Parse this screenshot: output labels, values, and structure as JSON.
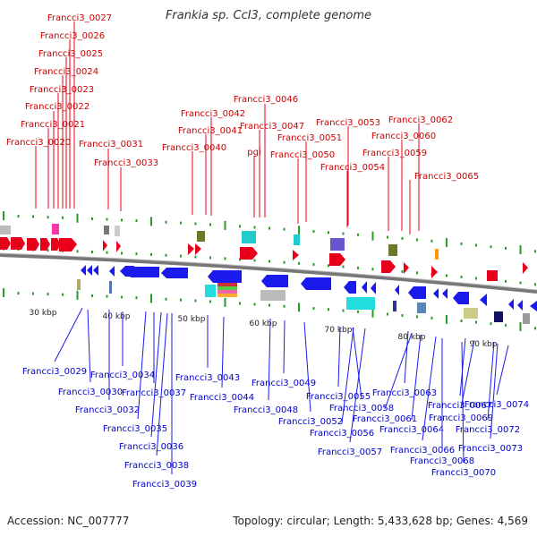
{
  "title": "Frankia sp. CcI3, complete genome",
  "footer": {
    "accession": "Accession: NC_007777",
    "summary": "Topology: circular; Length: 5,433,628 bp; Genes: 4,569"
  },
  "colors": {
    "forward": "#e8001a",
    "reverse": "#1a1aee",
    "forward_label": "#cc0000",
    "reverse_label": "#0000cc",
    "backbone": "#888888",
    "tick": "#2a9a2a"
  },
  "scale_labels": [
    "30 kbp",
    "40 kbp",
    "50 kbp",
    "60 kbp",
    "70 kbp",
    "80 kbp",
    "90 kbp"
  ],
  "forward_genes": [
    "Francci3_0027",
    "Francci3_0026",
    "Francci3_0025",
    "Francci3_0024",
    "Francci3_0023",
    "Francci3_0022",
    "Francci3_0021",
    "Francci3_0020",
    "Francci3_0031",
    "Francci3_0033",
    "Francci3_0046",
    "Francci3_0042",
    "Francci3_0047",
    "Francci3_0041",
    "Francci3_0040",
    "Francci3_0051",
    "pgi",
    "Francci3_0050",
    "Francci3_0053",
    "Francci3_0054",
    "Francci3_0062",
    "Francci3_0060",
    "Francci3_0059",
    "Francci3_0065"
  ],
  "reverse_genes": [
    "Francci3_0029",
    "Francci3_0030",
    "Francci3_0034",
    "Francci3_0032",
    "Francci3_0037",
    "Francci3_0035",
    "Francci3_0036",
    "Francci3_0038",
    "Francci3_0039",
    "Francci3_0043",
    "Francci3_0044",
    "Francci3_0049",
    "Francci3_0048",
    "Francci3_0052",
    "Francci3_0055",
    "Francci3_0058",
    "Francci3_0056",
    "Francci3_0057",
    "Francci3_0063",
    "Francci3_0061",
    "Francci3_0064",
    "Francci3_0066",
    "Francci3_0068",
    "Francci3_0067",
    "Francci3_0069",
    "Francci3_0070",
    "Francci3_0072",
    "Francci3_0073",
    "Francci3_0074"
  ]
}
